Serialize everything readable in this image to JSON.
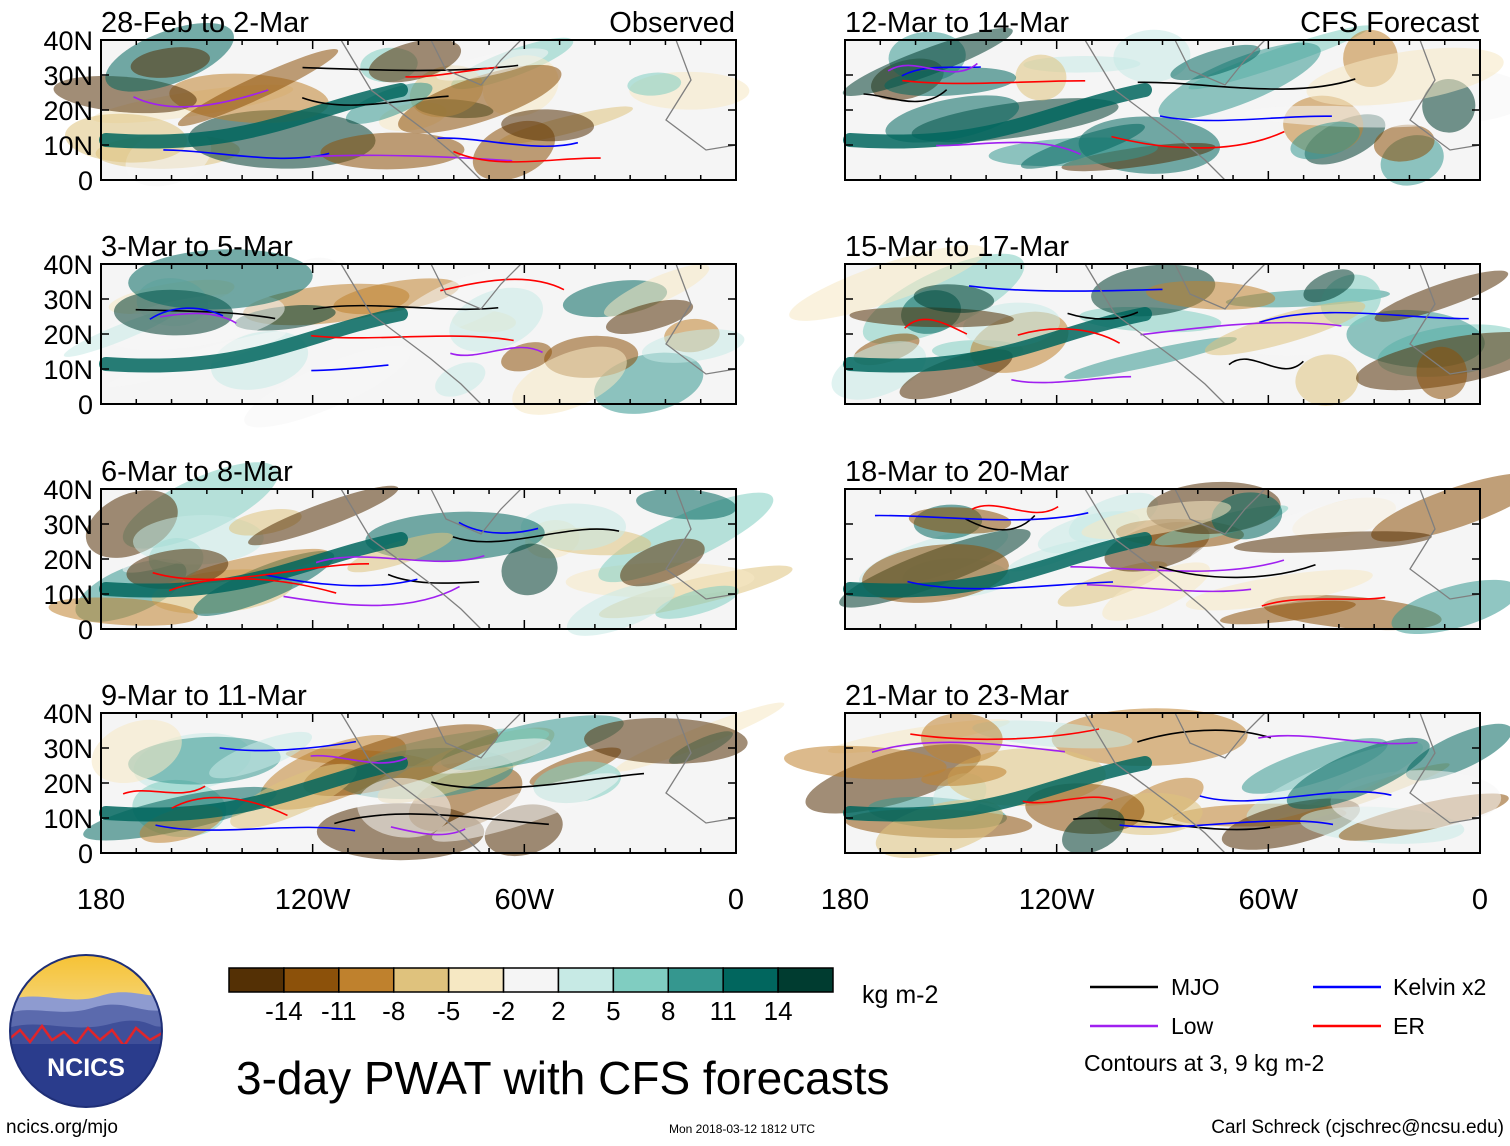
{
  "chart_data": {
    "type": "heatmap",
    "title": "3-day PWAT with CFS forecasts",
    "variable_units": "kg m-2",
    "columns": [
      {
        "label": "Observed",
        "panels": [
          {
            "title": "28-Feb to 2-Mar"
          },
          {
            "title": "3-Mar to 5-Mar"
          },
          {
            "title": "6-Mar to 8-Mar"
          },
          {
            "title": "9-Mar to 11-Mar"
          }
        ]
      },
      {
        "label": "CFS Forecast",
        "panels": [
          {
            "title": "12-Mar to 14-Mar"
          },
          {
            "title": "15-Mar to 17-Mar"
          },
          {
            "title": "18-Mar to 20-Mar"
          },
          {
            "title": "21-Mar to 23-Mar"
          }
        ]
      }
    ],
    "y_ticks": [
      "40N",
      "30N",
      "20N",
      "10N",
      "0"
    ],
    "y_values": [
      40,
      30,
      20,
      10,
      0
    ],
    "x_ticks": [
      "180",
      "120W",
      "60W",
      "0"
    ],
    "x_values": [
      -180,
      -120,
      -60,
      0
    ],
    "colorbar": {
      "tick_labels": [
        "-14",
        "-11",
        "-8",
        "-5",
        "-2",
        "2",
        "5",
        "8",
        "11",
        "14"
      ],
      "colors": [
        "#543005",
        "#8c510a",
        "#bf812d",
        "#dfc27d",
        "#f6e8c3",
        "#f5f5f5",
        "#c7eae5",
        "#80cdc1",
        "#35978f",
        "#01665e",
        "#003c30"
      ],
      "units": "kg m-2"
    },
    "legend": {
      "entries": [
        {
          "label": "MJO",
          "color": "#000000"
        },
        {
          "label": "Kelvin x2",
          "color": "#0000ff"
        },
        {
          "label": "Low",
          "color": "#a020f0"
        },
        {
          "label": "ER",
          "color": "#ff0000"
        }
      ],
      "note": "Contours at 3, 9 kg m-2"
    }
  },
  "footer": {
    "left": "ncics.org/mjo",
    "center": "Mon 2018-03-12 1812 UTC",
    "right": "Carl Schreck (cjschrec@ncsu.edu)"
  },
  "logo": {
    "text": "NCICS"
  }
}
